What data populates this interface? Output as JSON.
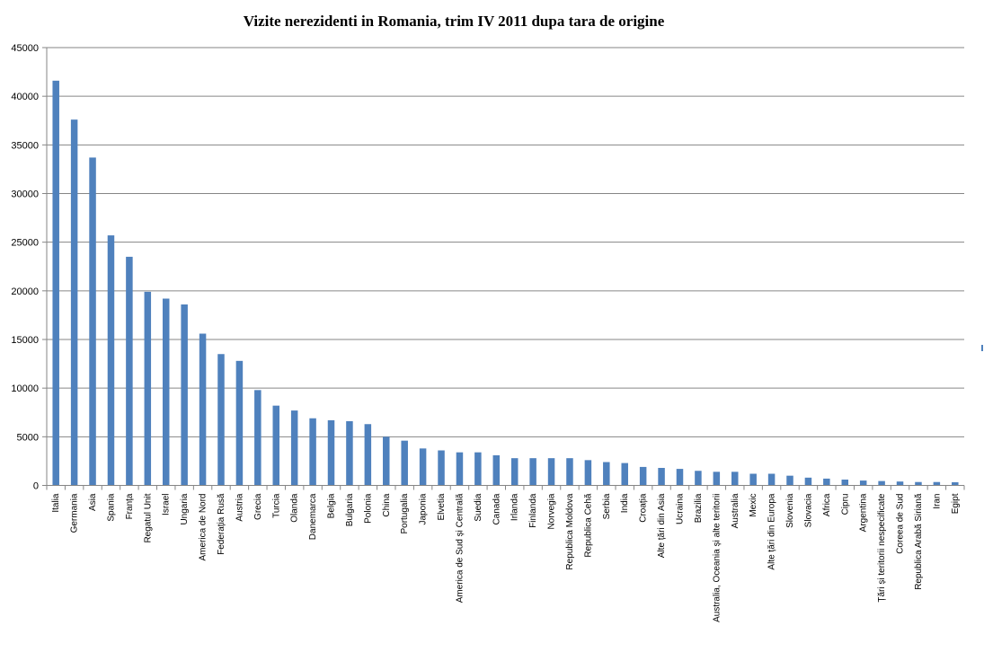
{
  "chart_data": {
    "type": "bar",
    "title": "Vizite nerezidenti in Romania, trim IV 2011 dupa tara de origine",
    "xlabel": "",
    "ylabel": "",
    "ylim": [
      0,
      45000
    ],
    "yticks": [
      0,
      5000,
      10000,
      15000,
      20000,
      25000,
      30000,
      35000,
      40000,
      45000
    ],
    "grid": true,
    "bar_color": "#4F81BD",
    "grid_color": "#868686",
    "categories": [
      "Italia",
      "Germania",
      "Asia",
      "Spania",
      "Franța",
      "Regatul Unit",
      "Israel",
      "Ungaria",
      "America de Nord",
      "Federația Rusă",
      "Austria",
      "Grecia",
      "Turcia",
      "Olanda",
      "Danemarca",
      "Belgia",
      "Bulgaria",
      "Polonia",
      "China",
      "Portugalia",
      "Japonia",
      "Elvetia",
      "America de Sud și Centrală",
      "Suedia",
      "Canada",
      "Irlanda",
      "Finlanda",
      "Norvegia",
      "Republica Moldova",
      "Republica Cehă",
      "Serbia",
      "India",
      "Croația",
      "Alte țări din Asia",
      "Ucraina",
      "Brazilia",
      "Australia, Oceania și alte teritorii",
      "Australia",
      "Mexic",
      "Alte țări din Europa",
      "Slovenia",
      "Slovacia",
      "Africa",
      "Cipru",
      "Argentina",
      "Țări și teritorii nespecificate",
      "Coreea de Sud",
      "Republica Arabă Siriană",
      "Iran",
      "Egipt"
    ],
    "values": [
      41600,
      37600,
      33700,
      25700,
      23500,
      19900,
      19200,
      18600,
      15600,
      13500,
      12800,
      9800,
      8200,
      7700,
      6900,
      6700,
      6600,
      6300,
      5000,
      4600,
      3800,
      3600,
      3400,
      3400,
      3100,
      2800,
      2800,
      2800,
      2800,
      2600,
      2400,
      2300,
      1900,
      1800,
      1700,
      1500,
      1400,
      1400,
      1200,
      1200,
      1000,
      800,
      700,
      600,
      500,
      450,
      400,
      350,
      350,
      330
    ]
  }
}
